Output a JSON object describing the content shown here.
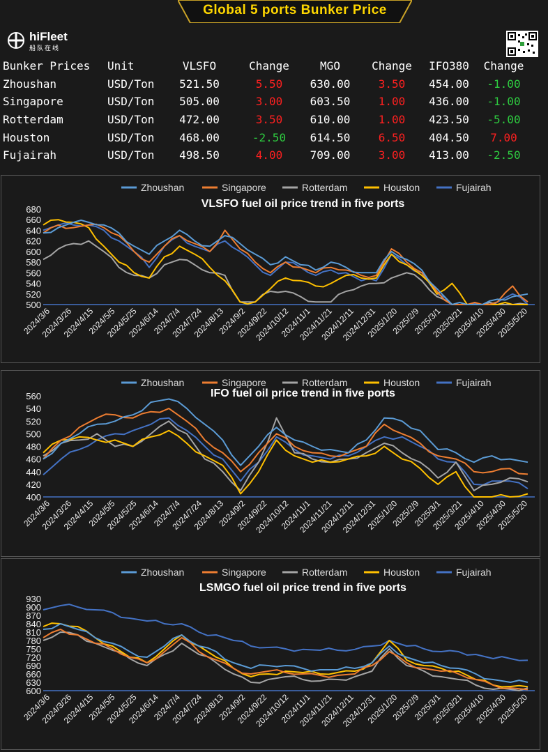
{
  "banner": {
    "title": "Global 5 ports  Bunker Price"
  },
  "logo": {
    "name": "hiFleet",
    "subtitle": "船队在线"
  },
  "table": {
    "headers": [
      "Bunker Prices",
      "Unit",
      "VLSFO",
      "Change",
      "MGO",
      "Change",
      "IFO380",
      "Change"
    ],
    "rows": [
      {
        "port": "Zhoushan",
        "unit": "USD/Ton",
        "vlsfo": "521.50",
        "vlsfo_change": "5.50",
        "mgo": "630.00",
        "mgo_change": "3.50",
        "ifo380": "454.00",
        "ifo380_change": "-1.00"
      },
      {
        "port": "Singapore",
        "unit": "USD/Ton",
        "vlsfo": "505.00",
        "vlsfo_change": "3.00",
        "mgo": "603.50",
        "mgo_change": "1.00",
        "ifo380": "436.00",
        "ifo380_change": "-1.00"
      },
      {
        "port": "Rotterdam",
        "unit": "USD/Ton",
        "vlsfo": "472.00",
        "vlsfo_change": "3.50",
        "mgo": "610.00",
        "mgo_change": "1.00",
        "ifo380": "423.50",
        "ifo380_change": "-5.00"
      },
      {
        "port": "Houston",
        "unit": "USD/Ton",
        "vlsfo": "468.00",
        "vlsfo_change": "-2.50",
        "mgo": "614.50",
        "mgo_change": "6.50",
        "ifo380": "404.50",
        "ifo380_change": "7.00"
      },
      {
        "port": "Fujairah",
        "unit": "USD/Ton",
        "vlsfo": "498.50",
        "vlsfo_change": "4.00",
        "mgo": "709.00",
        "mgo_change": "3.00",
        "ifo380": "413.00",
        "ifo380_change": "-2.50"
      }
    ]
  },
  "colors": {
    "Zhoushan": "#5b9bd5",
    "Singapore": "#ed7d31",
    "Rotterdam": "#a5a5a5",
    "Houston": "#ffc000",
    "Fujairah": "#4472c4",
    "up": "#ff2020",
    "down": "#2ecc40"
  },
  "chart_data": [
    {
      "type": "line",
      "title": "VLSFO fuel oil price trend in five ports",
      "ylim": [
        500,
        680
      ],
      "yticks": [
        500,
        520,
        540,
        560,
        580,
        600,
        620,
        640,
        660,
        680
      ],
      "xticks": [
        "2024/3/6",
        "2024/3/26",
        "2024/4/15",
        "2024/5/5",
        "2024/5/25",
        "2024/6/14",
        "2024/7/4",
        "2024/7/24",
        "2024/8/13",
        "2024/9/2",
        "2024/9/22",
        "2024/10/12",
        "2024/11/1",
        "2024/11/21",
        "2024/12/11",
        "2024/12/31",
        "2025/1/20",
        "2025/2/9",
        "2025/3/1",
        "2025/3/21",
        "2025/4/10",
        "2025/4/30",
        "2025/5/20"
      ],
      "series": [
        {
          "name": "Zhoushan",
          "values": [
            635,
            645,
            655,
            655,
            650,
            635,
            610,
            595,
            620,
            640,
            620,
            610,
            630,
            615,
            595,
            575,
            590,
            575,
            565,
            580,
            570,
            560,
            560,
            600,
            585,
            565,
            530,
            500,
            500,
            500,
            510,
            515,
            520
          ]
        },
        {
          "name": "Singapore",
          "values": [
            635,
            650,
            645,
            650,
            645,
            630,
            600,
            580,
            610,
            630,
            615,
            600,
            640,
            605,
            580,
            560,
            580,
            570,
            560,
            570,
            565,
            555,
            555,
            605,
            580,
            560,
            525,
            500,
            500,
            500,
            505,
            535,
            505
          ]
        },
        {
          "name": "Rotterdam",
          "values": [
            585,
            605,
            615,
            620,
            600,
            570,
            555,
            550,
            575,
            585,
            575,
            560,
            555,
            505,
            505,
            525,
            525,
            515,
            505,
            505,
            525,
            535,
            540,
            550,
            560,
            545,
            515,
            500,
            500,
            500,
            500,
            500,
            500
          ]
        },
        {
          "name": "Houston",
          "values": [
            650,
            660,
            655,
            645,
            610,
            580,
            560,
            550,
            590,
            610,
            595,
            570,
            545,
            505,
            505,
            530,
            550,
            545,
            535,
            540,
            555,
            550,
            550,
            595,
            575,
            555,
            520,
            540,
            500,
            500,
            500,
            500,
            500
          ]
        },
        {
          "name": "Fujairah",
          "values": [
            640,
            650,
            650,
            650,
            640,
            620,
            600,
            570,
            610,
            630,
            610,
            600,
            620,
            600,
            575,
            555,
            580,
            570,
            555,
            565,
            560,
            545,
            545,
            595,
            575,
            560,
            520,
            500,
            500,
            500,
            505,
            520,
            500
          ]
        }
      ]
    },
    {
      "type": "line",
      "title": "IFO fuel oil price trend in five ports",
      "ylim": [
        400,
        560
      ],
      "yticks": [
        400,
        420,
        440,
        460,
        480,
        500,
        520,
        540,
        560
      ],
      "xticks": [
        "2024/3/6",
        "2024/3/26",
        "2024/4/15",
        "2024/5/5",
        "2024/5/25",
        "2024/6/14",
        "2024/7/4",
        "2024/7/24",
        "2024/8/13",
        "2024/9/2",
        "2024/9/22",
        "2024/10/12",
        "2024/11/1",
        "2024/11/21",
        "2024/12/11",
        "2024/12/31",
        "2025/1/20",
        "2025/2/9",
        "2025/3/1",
        "2025/3/21",
        "2025/4/10",
        "2025/4/30",
        "2025/5/20"
      ],
      "series": [
        {
          "name": "Zhoushan",
          "values": [
            460,
            485,
            500,
            515,
            520,
            530,
            550,
            555,
            540,
            515,
            490,
            450,
            480,
            510,
            490,
            480,
            475,
            470,
            490,
            525,
            520,
            505,
            475,
            470,
            455,
            465,
            460,
            455
          ]
        },
        {
          "name": "Singapore",
          "values": [
            460,
            490,
            510,
            525,
            530,
            525,
            535,
            540,
            520,
            490,
            470,
            440,
            470,
            500,
            480,
            470,
            465,
            470,
            480,
            515,
            500,
            485,
            465,
            460,
            440,
            440,
            445,
            436
          ]
        },
        {
          "name": "Rotterdam",
          "values": [
            465,
            485,
            490,
            500,
            480,
            480,
            500,
            520,
            500,
            460,
            440,
            410,
            455,
            525,
            470,
            460,
            455,
            460,
            470,
            485,
            470,
            455,
            430,
            455,
            410,
            420,
            430,
            424
          ]
        },
        {
          "name": "Houston",
          "values": [
            470,
            490,
            495,
            490,
            490,
            480,
            495,
            505,
            485,
            465,
            450,
            405,
            440,
            490,
            465,
            455,
            455,
            460,
            465,
            480,
            460,
            445,
            420,
            440,
            400,
            400,
            400,
            405
          ]
        },
        {
          "name": "Fujairah",
          "values": [
            435,
            460,
            475,
            490,
            500,
            505,
            515,
            525,
            505,
            480,
            460,
            425,
            455,
            495,
            475,
            465,
            460,
            465,
            480,
            495,
            495,
            480,
            460,
            455,
            420,
            425,
            425,
            413
          ]
        }
      ]
    },
    {
      "type": "line",
      "title": "LSMGO fuel oil price trend in five ports",
      "ylim": [
        600,
        930
      ],
      "yticks": [
        600,
        630,
        660,
        690,
        720,
        750,
        780,
        810,
        840,
        870,
        900,
        930
      ],
      "xticks": [
        "2024/3/6",
        "2024/3/26",
        "2024/4/15",
        "2024/5/5",
        "2024/5/25",
        "2024/6/14",
        "2024/7/4",
        "2024/7/24",
        "2024/8/13",
        "2024/9/2",
        "2024/9/22",
        "2024/10/12",
        "2024/11/1",
        "2024/11/21",
        "2024/12/11",
        "2024/12/31",
        "2025/1/20",
        "2025/2/9",
        "2025/3/1",
        "2025/3/21",
        "2025/4/10",
        "2025/4/30",
        "2025/5/20"
      ],
      "series": [
        {
          "name": "Zhoushan",
          "values": [
            820,
            840,
            820,
            790,
            770,
            740,
            720,
            760,
            800,
            760,
            740,
            700,
            680,
            690,
            690,
            680,
            675,
            675,
            680,
            700,
            760,
            720,
            700,
            690,
            680,
            660,
            640,
            630,
            630
          ]
        },
        {
          "name": "Singapore",
          "values": [
            790,
            820,
            800,
            770,
            750,
            720,
            700,
            740,
            790,
            740,
            710,
            680,
            660,
            670,
            665,
            660,
            655,
            655,
            660,
            690,
            740,
            700,
            680,
            670,
            660,
            640,
            620,
            610,
            604
          ]
        },
        {
          "name": "Rotterdam",
          "values": [
            780,
            810,
            800,
            770,
            745,
            715,
            690,
            730,
            770,
            730,
            700,
            660,
            630,
            640,
            650,
            640,
            635,
            640,
            650,
            670,
            750,
            690,
            670,
            650,
            640,
            620,
            605,
            605,
            610
          ]
        },
        {
          "name": "Houston",
          "values": [
            830,
            840,
            830,
            790,
            760,
            720,
            700,
            750,
            800,
            760,
            720,
            680,
            650,
            660,
            670,
            665,
            660,
            665,
            670,
            700,
            780,
            710,
            690,
            680,
            670,
            640,
            620,
            615,
            614
          ]
        },
        {
          "name": "Fujairah",
          "values": [
            890,
            905,
            900,
            890,
            880,
            860,
            850,
            840,
            840,
            810,
            800,
            780,
            760,
            755,
            750,
            748,
            745,
            745,
            748,
            760,
            780,
            760,
            750,
            740,
            740,
            730,
            715,
            715,
            709
          ]
        }
      ]
    }
  ]
}
